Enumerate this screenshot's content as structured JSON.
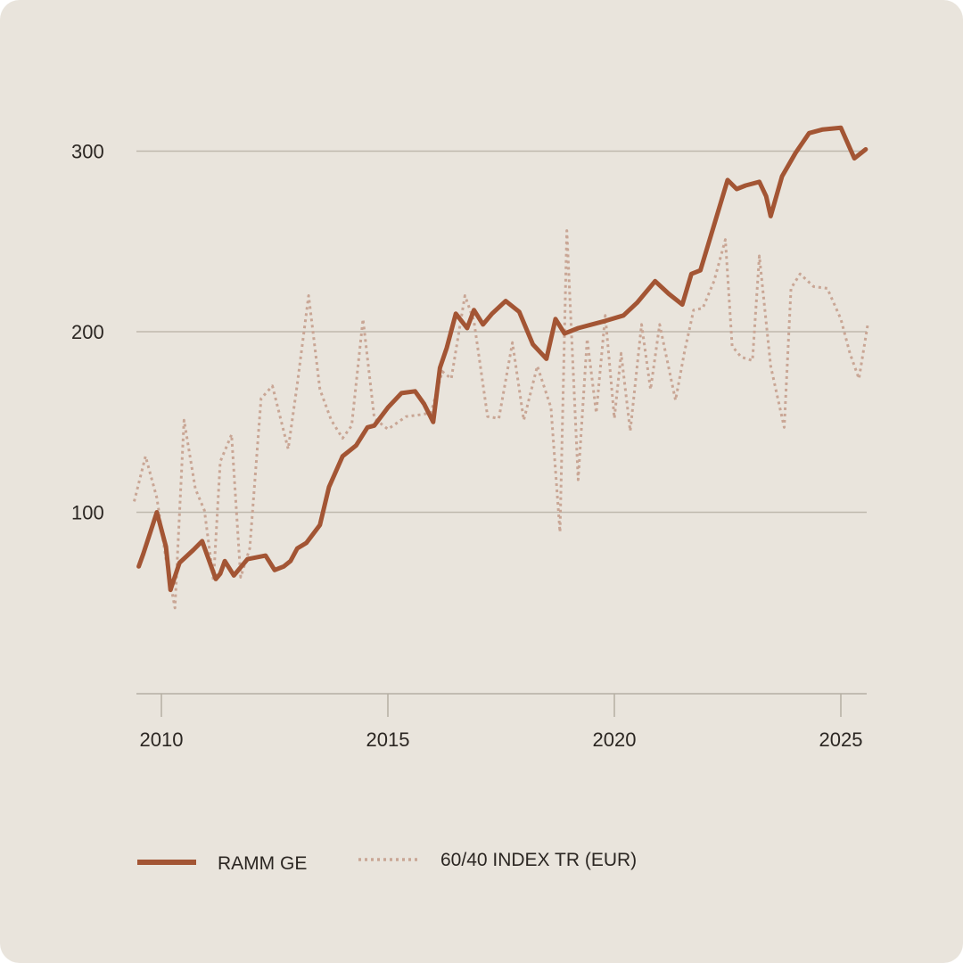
{
  "chart_data": {
    "type": "line",
    "title": "",
    "xlabel": "",
    "ylabel": "",
    "xlim": [
      2009.5,
      2025.6
    ],
    "ylim": [
      0,
      330
    ],
    "x_ticks": [
      2010,
      2015,
      2020,
      2025
    ],
    "x_tick_labels": [
      "2010",
      "2015",
      "2020",
      "2025"
    ],
    "y_ticks": [
      100,
      200,
      300
    ],
    "y_tick_labels": [
      "100",
      "200",
      "300"
    ],
    "grid": "horizontal",
    "legend_position": "bottom",
    "colors": {
      "background": "#e9e4dc",
      "grid": "#bfb8ad",
      "axis": "#b5aea3",
      "ramm": "#a35534",
      "index": "#c9a695",
      "text": "#2b2622"
    },
    "series": [
      {
        "name": "RAMM GE",
        "style": "solid",
        "x": [
          2009.5,
          2009.6,
          2009.9,
          2010.1,
          2010.2,
          2010.4,
          2010.7,
          2010.9,
          2011.1,
          2011.2,
          2011.3,
          2011.4,
          2011.6,
          2011.9,
          2012.1,
          2012.3,
          2012.5,
          2012.7,
          2012.85,
          2013.0,
          2013.2,
          2013.5,
          2013.7,
          2014.0,
          2014.3,
          2014.55,
          2014.7,
          2015.0,
          2015.3,
          2015.6,
          2015.8,
          2016.0,
          2016.15,
          2016.3,
          2016.5,
          2016.75,
          2016.9,
          2017.1,
          2017.3,
          2017.6,
          2017.9,
          2018.2,
          2018.5,
          2018.7,
          2018.9,
          2019.2,
          2019.5,
          2019.8,
          2020.2,
          2020.5,
          2020.9,
          2021.2,
          2021.5,
          2021.7,
          2021.9,
          2022.2,
          2022.5,
          2022.7,
          2022.9,
          2023.2,
          2023.35,
          2023.45,
          2023.7,
          2024.0,
          2024.3,
          2024.6,
          2025.0,
          2025.3,
          2025.55
        ],
        "values": [
          70,
          77,
          100,
          81,
          57,
          72,
          79,
          84,
          70,
          63,
          66,
          73,
          65,
          74,
          75,
          76,
          68,
          70,
          73,
          80,
          83,
          93,
          114,
          131,
          137,
          147,
          148,
          158,
          166,
          167,
          160,
          150,
          180,
          191,
          210,
          202,
          212,
          204,
          210,
          217,
          211,
          193,
          185,
          207,
          199,
          202,
          204,
          206,
          209,
          216,
          228,
          221,
          215,
          232,
          234,
          259,
          284,
          279,
          281,
          283,
          275,
          264,
          286,
          299,
          310,
          312,
          313,
          296,
          301
        ]
      },
      {
        "name": "60/40 INDEX TR (EUR)",
        "style": "dotted",
        "x": [
          2009.4,
          2009.65,
          2009.9,
          2010.1,
          2010.3,
          2010.5,
          2010.75,
          2010.95,
          2011.15,
          2011.3,
          2011.55,
          2011.75,
          2011.95,
          2012.2,
          2012.45,
          2012.8,
          2013.0,
          2013.25,
          2013.5,
          2013.75,
          2014.0,
          2014.2,
          2014.45,
          2014.7,
          2015.0,
          2015.4,
          2015.7,
          2015.95,
          2016.2,
          2016.4,
          2016.7,
          2016.9,
          2017.2,
          2017.45,
          2017.75,
          2018.0,
          2018.3,
          2018.6,
          2018.8,
          2018.95,
          2019.2,
          2019.4,
          2019.6,
          2019.8,
          2020.0,
          2020.15,
          2020.35,
          2020.6,
          2020.8,
          2021.0,
          2021.35,
          2021.55,
          2021.75,
          2021.95,
          2022.2,
          2022.45,
          2022.6,
          2022.8,
          2023.05,
          2023.2,
          2023.45,
          2023.75,
          2023.9,
          2024.1,
          2024.4,
          2024.7,
          2025.0,
          2025.2,
          2025.4,
          2025.6
        ],
        "values": [
          106,
          131,
          108,
          74,
          47,
          151,
          113,
          101,
          62,
          128,
          143,
          64,
          80,
          163,
          170,
          135,
          171,
          220,
          168,
          151,
          141,
          148,
          207,
          152,
          146,
          153,
          154,
          155,
          178,
          174,
          220,
          206,
          153,
          152,
          194,
          151,
          181,
          158,
          89,
          256,
          118,
          196,
          155,
          209,
          152,
          188,
          145,
          204,
          168,
          204,
          162,
          189,
          212,
          213,
          228,
          251,
          192,
          186,
          184,
          242,
          181,
          147,
          224,
          232,
          225,
          224,
          207,
          188,
          174,
          205
        ]
      }
    ]
  },
  "legend": {
    "items": [
      {
        "label": "RAMM GE"
      },
      {
        "label": "60/40 INDEX TR (EUR)"
      }
    ]
  }
}
